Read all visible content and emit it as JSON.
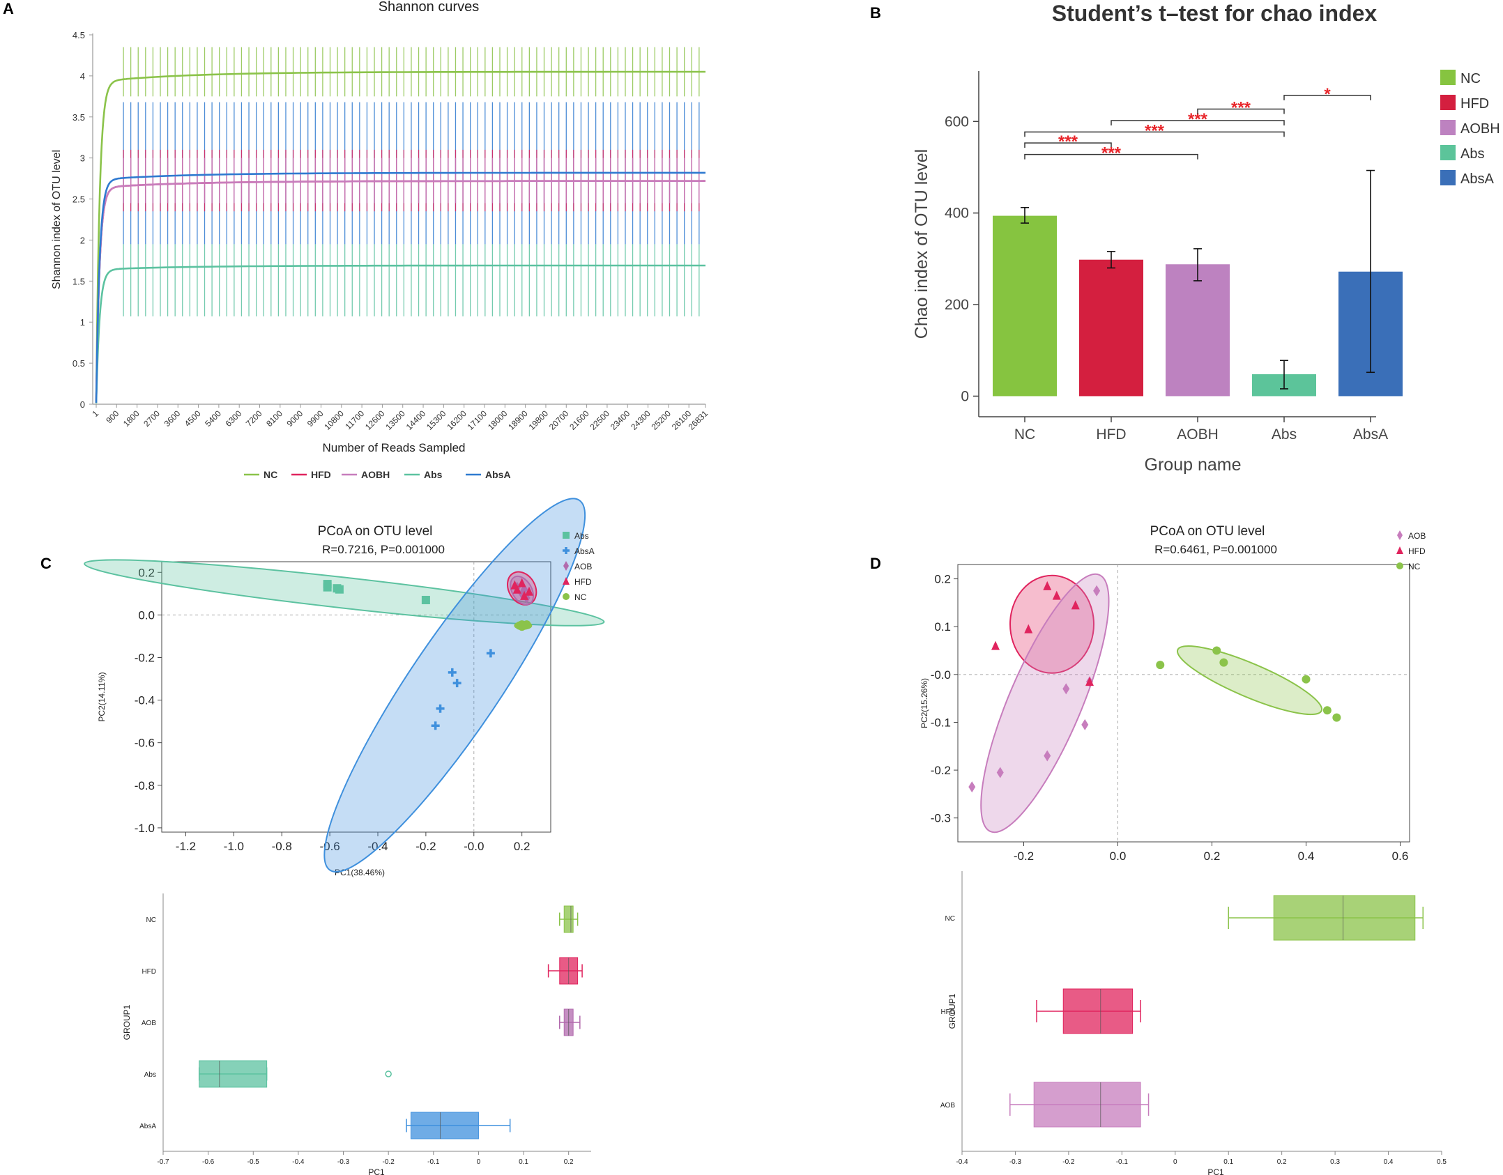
{
  "panels": {
    "a": "A",
    "b": "B",
    "c": "C",
    "d": "D"
  },
  "colors": {
    "NC": "#8bc34a",
    "HFD": "#e0245e",
    "AOBH": "#c77dbd",
    "Abs": "#5cc2a0",
    "AbsA": "#2f7ad0",
    "b_NC": "#86c440",
    "b_HFD": "#d41f3f",
    "b_AOBH": "#bd82c0",
    "b_Abs": "#5cc49a",
    "b_AbsA": "#3a6fb8",
    "sig": "#e8262b"
  },
  "chart_data": [
    {
      "id": "A",
      "type": "line",
      "title": "Shannon curves",
      "xlabel": "Number of Reads Sampled",
      "ylabel": "Shannon index of OTU level",
      "xlim": [
        1,
        26831
      ],
      "ylim": [
        0,
        4.5
      ],
      "yticks": [
        "0",
        "0.5",
        "1",
        "1.5",
        "2",
        "2.5",
        "3",
        "3.5",
        "4",
        "4.5"
      ],
      "xticks": [
        "1",
        "900",
        "1800",
        "2700",
        "3600",
        "4500",
        "5400",
        "6300",
        "7200",
        "8100",
        "9000",
        "9900",
        "10800",
        "11700",
        "12600",
        "13500",
        "14400",
        "15300",
        "16200",
        "17100",
        "18000",
        "18900",
        "19800",
        "20700",
        "21600",
        "22500",
        "23400",
        "24300",
        "25200",
        "26100",
        "26831"
      ],
      "series": [
        {
          "name": "NC",
          "plateau": 4.05,
          "err_low": 3.75,
          "err_high": 4.35
        },
        {
          "name": "HFD",
          "plateau": 2.72,
          "err_low": 2.35,
          "err_high": 3.1
        },
        {
          "name": "AOBH",
          "plateau": 2.72,
          "err_low": 2.45,
          "err_high": 3.0
        },
        {
          "name": "Abs",
          "plateau": 1.69,
          "err_low": 1.07,
          "err_high": 1.95
        },
        {
          "name": "AbsA",
          "plateau": 2.82,
          "err_low": 1.95,
          "err_high": 3.68
        }
      ],
      "legend": [
        "NC",
        "HFD",
        "AOBH",
        "Abs",
        "AbsA"
      ]
    },
    {
      "id": "B",
      "type": "bar",
      "title": "Student’s t–test for chao index",
      "xlabel": "Group name",
      "ylabel": "Chao index of OTU level",
      "ylim": [
        -45,
        710
      ],
      "yticks": [
        "0",
        "200",
        "400",
        "600"
      ],
      "categories": [
        "NC",
        "HFD",
        "AOBH",
        "Abs",
        "AbsA"
      ],
      "values": [
        394,
        298,
        288,
        48,
        272
      ],
      "errors_low": [
        378,
        280,
        252,
        16,
        52
      ],
      "errors_high": [
        412,
        316,
        322,
        78,
        493
      ],
      "significance": [
        {
          "from": 0,
          "to": 1,
          "label": "***",
          "level": 553
        },
        {
          "from": 0,
          "to": 2,
          "label": "***",
          "level": 528
        },
        {
          "from": 0,
          "to": 3,
          "label": "***",
          "level": 577
        },
        {
          "from": 1,
          "to": 3,
          "label": "***",
          "level": 602
        },
        {
          "from": 2,
          "to": 3,
          "label": "***",
          "level": 627
        },
        {
          "from": 3,
          "to": 4,
          "label": "*",
          "level": 657
        }
      ],
      "legend": [
        "NC",
        "HFD",
        "AOBH",
        "Abs",
        "AbsA"
      ]
    },
    {
      "id": "C",
      "type": "scatter",
      "title": "PCoA on OTU level",
      "subtitle": "R=0.7216, P=0.001000",
      "xlabel": "PC1(38.46%)",
      "ylabel": "PC2(14.11%)",
      "xlim": [
        -1.3,
        0.32
      ],
      "ylim": [
        -1.02,
        0.25
      ],
      "xticks": [
        "-1.2",
        "-1.0",
        "-0.8",
        "-0.6",
        "-0.4",
        "-0.2",
        "-0.0",
        "0.2"
      ],
      "yticks": [
        "-1.0",
        "-0.8",
        "-0.6",
        "-0.4",
        "-0.2",
        "0.0",
        "0.2"
      ],
      "legend": [
        "Abs",
        "AbsA",
        "AOB",
        "HFD",
        "NC"
      ],
      "series": [
        {
          "name": "Abs",
          "marker": "square",
          "points": [
            [
              -0.61,
              0.145
            ],
            [
              -0.61,
              0.13
            ],
            [
              -0.57,
              0.125
            ],
            [
              -0.56,
              0.12
            ],
            [
              -0.2,
              0.07
            ]
          ]
        },
        {
          "name": "AbsA",
          "marker": "plus",
          "points": [
            [
              -0.09,
              -0.27
            ],
            [
              -0.07,
              -0.32
            ],
            [
              -0.14,
              -0.44
            ],
            [
              -0.16,
              -0.52
            ],
            [
              0.07,
              -0.18
            ]
          ]
        },
        {
          "name": "AOB",
          "marker": "diamond",
          "points": [
            [
              0.18,
              0.13
            ],
            [
              0.21,
              0.12
            ],
            [
              0.22,
              0.08
            ],
            [
              0.2,
              0.1
            ]
          ]
        },
        {
          "name": "HFD",
          "marker": "triangle",
          "points": [
            [
              0.17,
              0.14
            ],
            [
              0.2,
              0.15
            ],
            [
              0.23,
              0.11
            ],
            [
              0.18,
              0.12
            ],
            [
              0.21,
              0.09
            ]
          ]
        },
        {
          "name": "NC",
          "marker": "circle",
          "points": [
            [
              0.19,
              -0.05
            ],
            [
              0.2,
              -0.045
            ],
            [
              0.21,
              -0.05
            ],
            [
              0.22,
              -0.045
            ],
            [
              0.2,
              -0.055
            ]
          ]
        }
      ],
      "box": {
        "xlabel": "PC1",
        "ylabel": "GROUP1",
        "xlim": [
          -0.7,
          0.25
        ],
        "xticks": [
          "-0.7",
          "-0.6",
          "-0.5",
          "-0.4",
          "-0.3",
          "-0.2",
          "-0.1",
          "0",
          "0.1",
          "0.2"
        ],
        "categories": [
          "NC",
          "HFD",
          "AOB",
          "Abs",
          "AbsA"
        ],
        "boxes": [
          {
            "name": "NC",
            "min": 0.18,
            "q1": 0.19,
            "median": 0.205,
            "q3": 0.21,
            "max": 0.22
          },
          {
            "name": "HFD",
            "min": 0.155,
            "q1": 0.18,
            "median": 0.2,
            "q3": 0.22,
            "max": 0.23
          },
          {
            "name": "AOB",
            "min": 0.18,
            "q1": 0.19,
            "median": 0.2,
            "q3": 0.21,
            "max": 0.225
          },
          {
            "name": "Abs",
            "min": -0.62,
            "q1": -0.62,
            "median": -0.575,
            "q3": -0.47,
            "max": -0.47,
            "outlier": -0.2
          },
          {
            "name": "AbsA",
            "min": -0.16,
            "q1": -0.15,
            "median": -0.085,
            "q3": 0.0,
            "max": 0.07
          }
        ]
      }
    },
    {
      "id": "D",
      "type": "scatter",
      "title": "PCoA on OTU level",
      "subtitle": "R=0.6461, P=0.001000",
      "xlabel": "",
      "ylabel": "PC2(15.26%)",
      "xlim": [
        -0.34,
        0.62
      ],
      "ylim": [
        -0.35,
        0.23
      ],
      "xticks": [
        "-0.2",
        "0.0",
        "0.2",
        "0.4",
        "0.6"
      ],
      "yticks": [
        "-0.3",
        "-0.2",
        "-0.1",
        "-0.0",
        "0.1",
        "0.2"
      ],
      "legend": [
        "AOB",
        "HFD",
        "NC"
      ],
      "series": [
        {
          "name": "AOB",
          "marker": "diamond",
          "points": [
            [
              -0.045,
              0.175
            ],
            [
              -0.06,
              -0.015
            ],
            [
              -0.11,
              -0.03
            ],
            [
              -0.07,
              -0.105
            ],
            [
              -0.15,
              -0.17
            ],
            [
              -0.25,
              -0.205
            ],
            [
              -0.31,
              -0.235
            ]
          ]
        },
        {
          "name": "HFD",
          "marker": "triangle",
          "points": [
            [
              -0.15,
              0.185
            ],
            [
              -0.13,
              0.165
            ],
            [
              -0.09,
              0.145
            ],
            [
              -0.19,
              0.095
            ],
            [
              -0.26,
              0.06
            ],
            [
              -0.06,
              -0.015
            ]
          ]
        },
        {
          "name": "NC",
          "marker": "circle",
          "points": [
            [
              0.09,
              0.02
            ],
            [
              0.21,
              0.05
            ],
            [
              0.225,
              0.025
            ],
            [
              0.4,
              -0.01
            ],
            [
              0.445,
              -0.075
            ],
            [
              0.465,
              -0.09
            ]
          ]
        }
      ],
      "box": {
        "xlabel": "PC1",
        "ylabel": "GROUP1",
        "xlim": [
          -0.4,
          0.5
        ],
        "xticks": [
          "-0.4",
          "-0.3",
          "-0.2",
          "-0.1",
          "0",
          "0.1",
          "0.2",
          "0.3",
          "0.4",
          "0.5"
        ],
        "categories": [
          "NC",
          "HFD",
          "AOB"
        ],
        "boxes": [
          {
            "name": "NC",
            "min": 0.1,
            "q1": 0.185,
            "median": 0.315,
            "q3": 0.45,
            "max": 0.465
          },
          {
            "name": "HFD",
            "min": -0.26,
            "q1": -0.21,
            "median": -0.14,
            "q3": -0.08,
            "max": -0.065
          },
          {
            "name": "AOB",
            "min": -0.31,
            "q1": -0.265,
            "median": -0.14,
            "q3": -0.065,
            "max": -0.05
          }
        ]
      }
    }
  ]
}
